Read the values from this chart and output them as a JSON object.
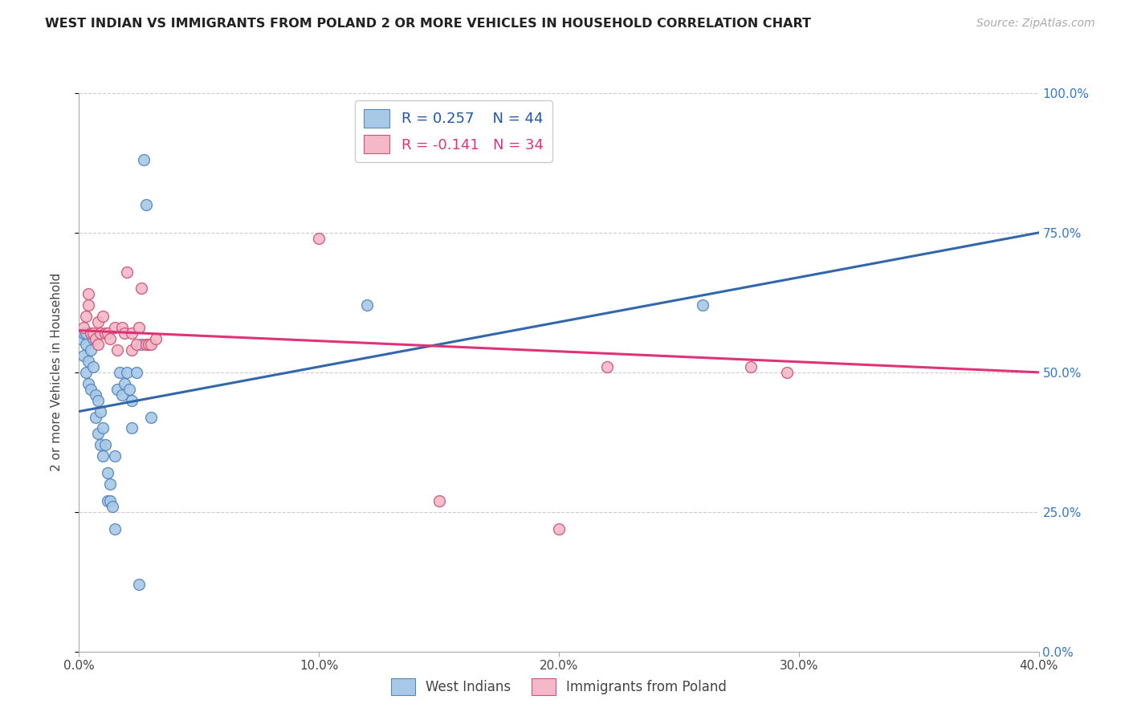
{
  "title": "WEST INDIAN VS IMMIGRANTS FROM POLAND 2 OR MORE VEHICLES IN HOUSEHOLD CORRELATION CHART",
  "source": "Source: ZipAtlas.com",
  "ylabel": "2 or more Vehicles in Household",
  "xlim": [
    0.0,
    0.4
  ],
  "ylim": [
    0.0,
    1.0
  ],
  "xticks": [
    0.0,
    0.1,
    0.2,
    0.3,
    0.4
  ],
  "yticks": [
    0.0,
    0.25,
    0.5,
    0.75,
    1.0
  ],
  "xtick_labels": [
    "0.0%",
    "10.0%",
    "20.0%",
    "30.0%",
    "40.0%"
  ],
  "ytick_labels": [
    "0.0%",
    "25.0%",
    "50.0%",
    "75.0%",
    "100.0%"
  ],
  "legend_labels": [
    "West Indians",
    "Immigrants from Poland"
  ],
  "blue_R": 0.257,
  "blue_N": 44,
  "pink_R": -0.141,
  "pink_N": 34,
  "blue_color": "#a8c8e8",
  "pink_color": "#f4b8c8",
  "blue_edge_color": "#5588bb",
  "pink_edge_color": "#cc5577",
  "blue_line_color": "#3366aa",
  "pink_line_color": "#dd3377",
  "blue_label_color": "#2255aa",
  "right_tick_color": "#3377cc",
  "blue_scatter_x": [
    0.001,
    0.002,
    0.002,
    0.003,
    0.003,
    0.003,
    0.004,
    0.004,
    0.005,
    0.005,
    0.006,
    0.006,
    0.007,
    0.007,
    0.008,
    0.008,
    0.009,
    0.009,
    0.01,
    0.01,
    0.011,
    0.012,
    0.012,
    0.013,
    0.013,
    0.014,
    0.015,
    0.015,
    0.016,
    0.017,
    0.018,
    0.019,
    0.02,
    0.021,
    0.022,
    0.022,
    0.024,
    0.025,
    0.026,
    0.027,
    0.028,
    0.03,
    0.12,
    0.26
  ],
  "blue_scatter_y": [
    0.56,
    0.53,
    0.57,
    0.57,
    0.55,
    0.5,
    0.48,
    0.52,
    0.47,
    0.54,
    0.51,
    0.56,
    0.42,
    0.46,
    0.39,
    0.45,
    0.37,
    0.43,
    0.35,
    0.4,
    0.37,
    0.27,
    0.32,
    0.27,
    0.3,
    0.26,
    0.22,
    0.35,
    0.47,
    0.5,
    0.46,
    0.48,
    0.5,
    0.47,
    0.45,
    0.4,
    0.5,
    0.12,
    0.55,
    0.88,
    0.8,
    0.42,
    0.62,
    0.62
  ],
  "pink_scatter_x": [
    0.002,
    0.003,
    0.004,
    0.004,
    0.005,
    0.006,
    0.007,
    0.008,
    0.008,
    0.009,
    0.01,
    0.011,
    0.012,
    0.013,
    0.015,
    0.016,
    0.018,
    0.019,
    0.02,
    0.022,
    0.022,
    0.024,
    0.025,
    0.026,
    0.028,
    0.029,
    0.03,
    0.032,
    0.1,
    0.15,
    0.2,
    0.22,
    0.28,
    0.295
  ],
  "pink_scatter_y": [
    0.58,
    0.6,
    0.62,
    0.64,
    0.57,
    0.57,
    0.56,
    0.55,
    0.59,
    0.57,
    0.6,
    0.57,
    0.57,
    0.56,
    0.58,
    0.54,
    0.58,
    0.57,
    0.68,
    0.54,
    0.57,
    0.55,
    0.58,
    0.65,
    0.55,
    0.55,
    0.55,
    0.56,
    0.74,
    0.27,
    0.22,
    0.51,
    0.51,
    0.5
  ],
  "blue_line_x0": 0.0,
  "blue_line_y0": 0.43,
  "blue_line_x1": 0.4,
  "blue_line_y1": 0.75,
  "pink_line_x0": 0.0,
  "pink_line_y0": 0.575,
  "pink_line_x1": 0.4,
  "pink_line_y1": 0.5,
  "background_color": "#ffffff",
  "grid_color": "#cccccc"
}
